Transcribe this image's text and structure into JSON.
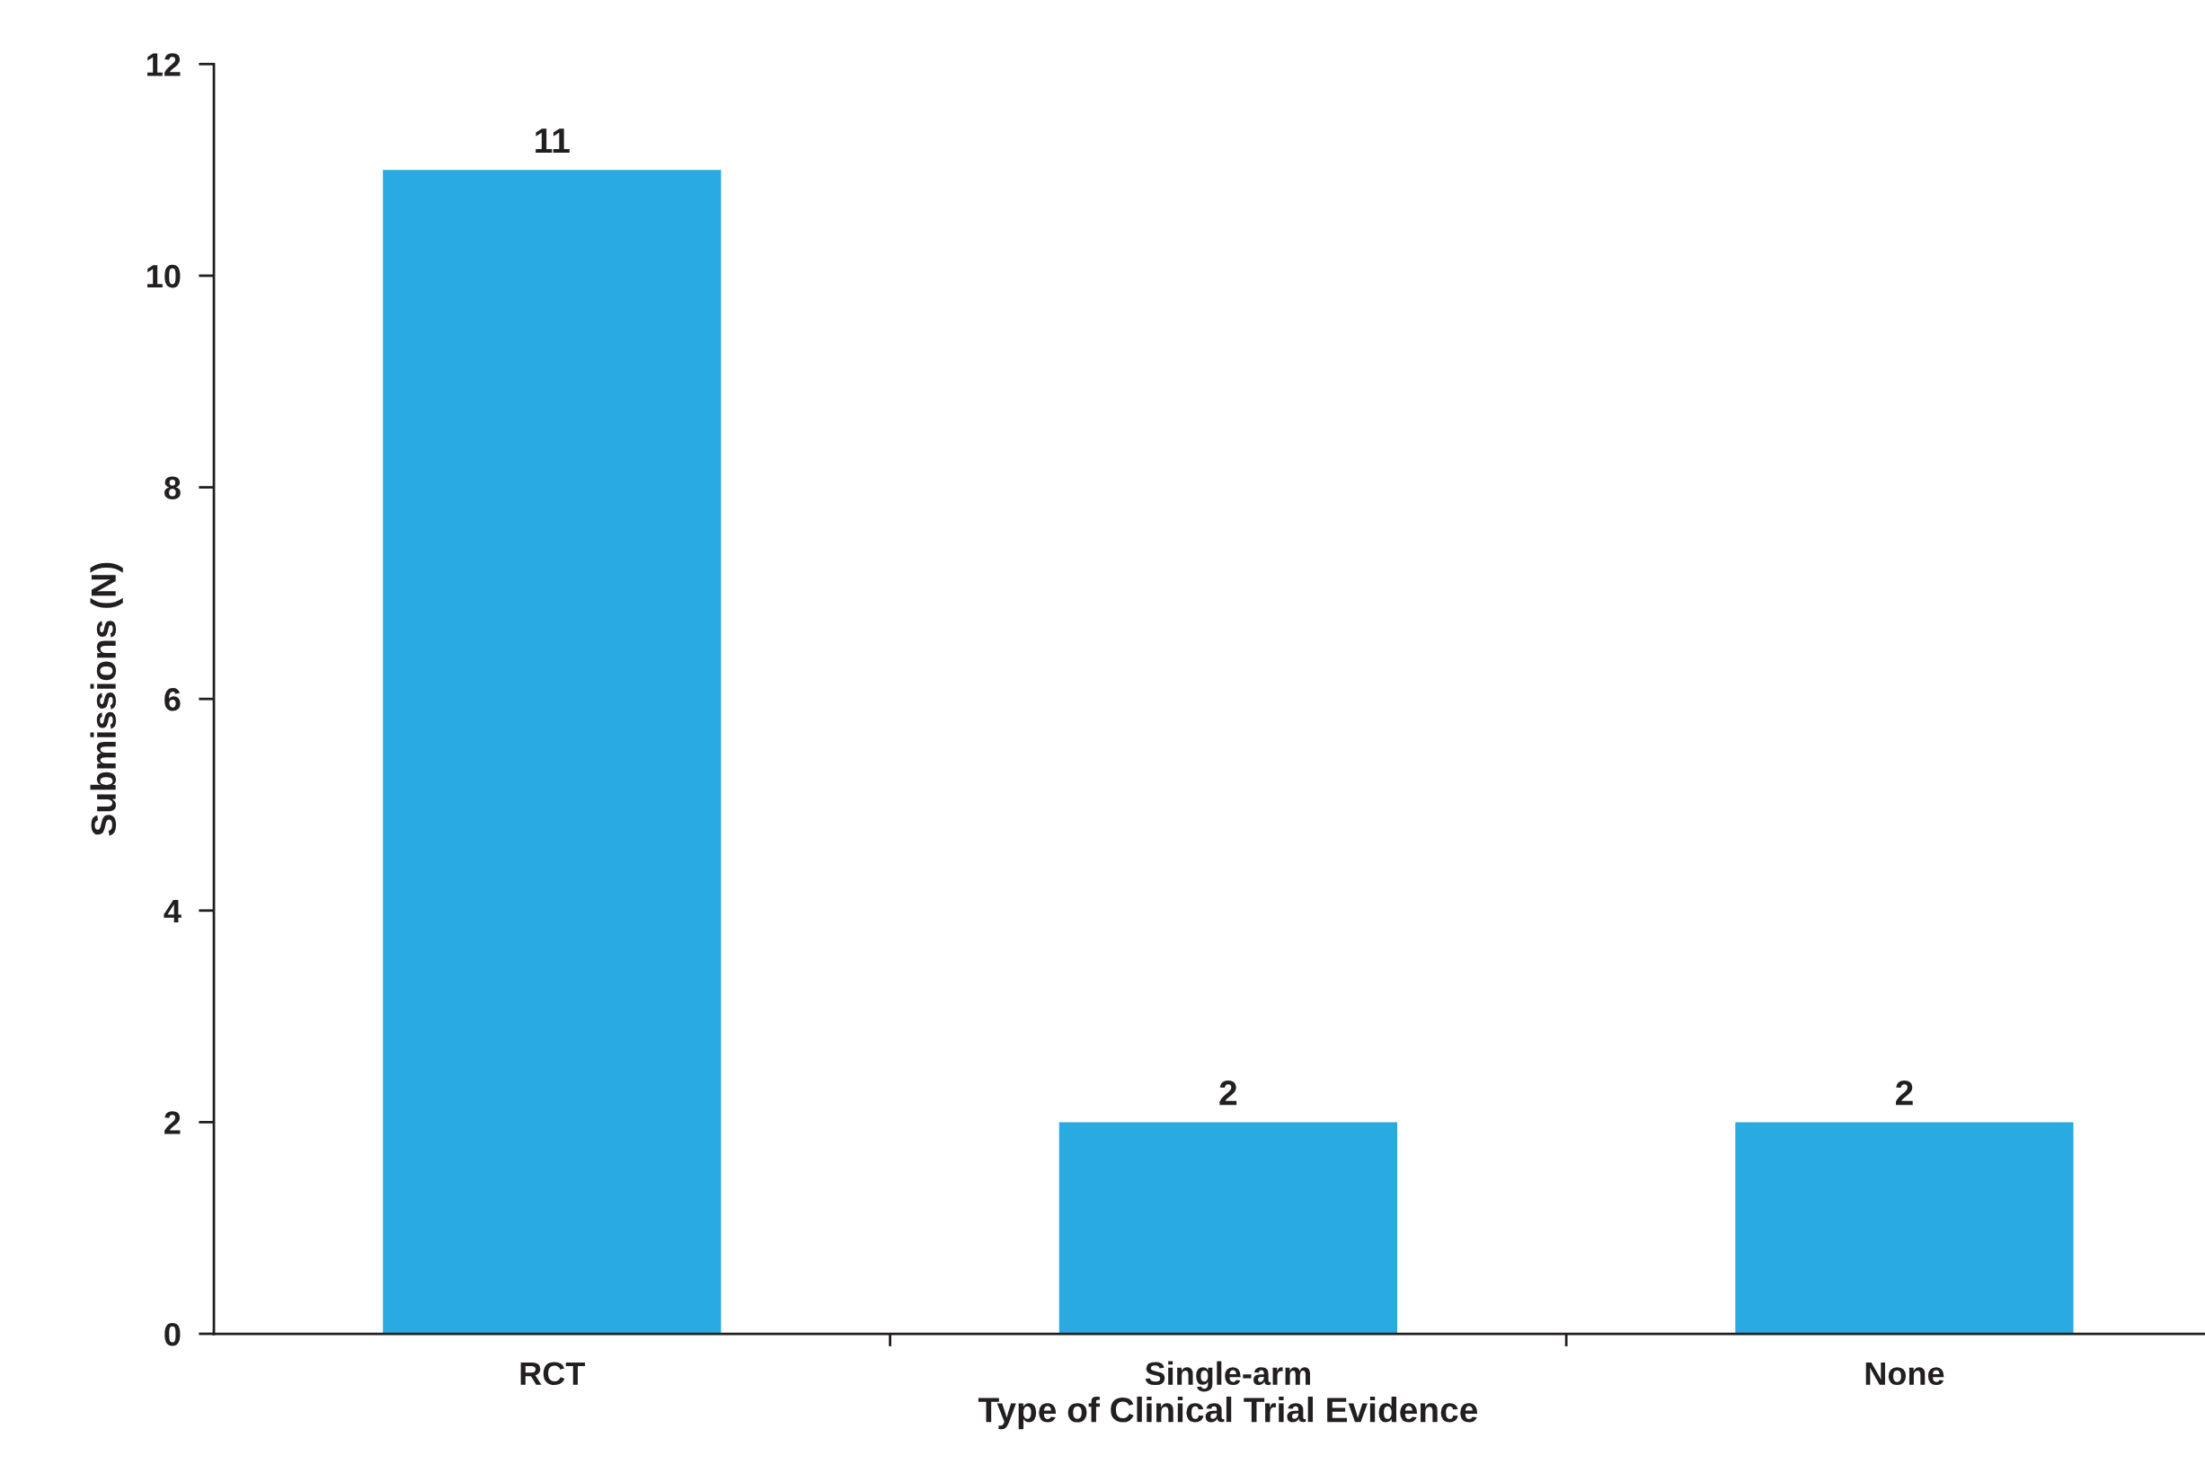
{
  "chart_data": {
    "type": "bar",
    "xlabel": "Type of Clinical Trial Evidence",
    "ylabel": "Submissions (N)",
    "categories": [
      "RCT",
      "Single-arm",
      "None"
    ],
    "values": [
      11,
      2,
      2
    ],
    "color": "#29aae1",
    "ylim": [
      0,
      12
    ],
    "yticks": [
      0,
      2,
      4,
      6,
      8,
      10,
      12
    ],
    "grid": false,
    "data_labels": true
  }
}
